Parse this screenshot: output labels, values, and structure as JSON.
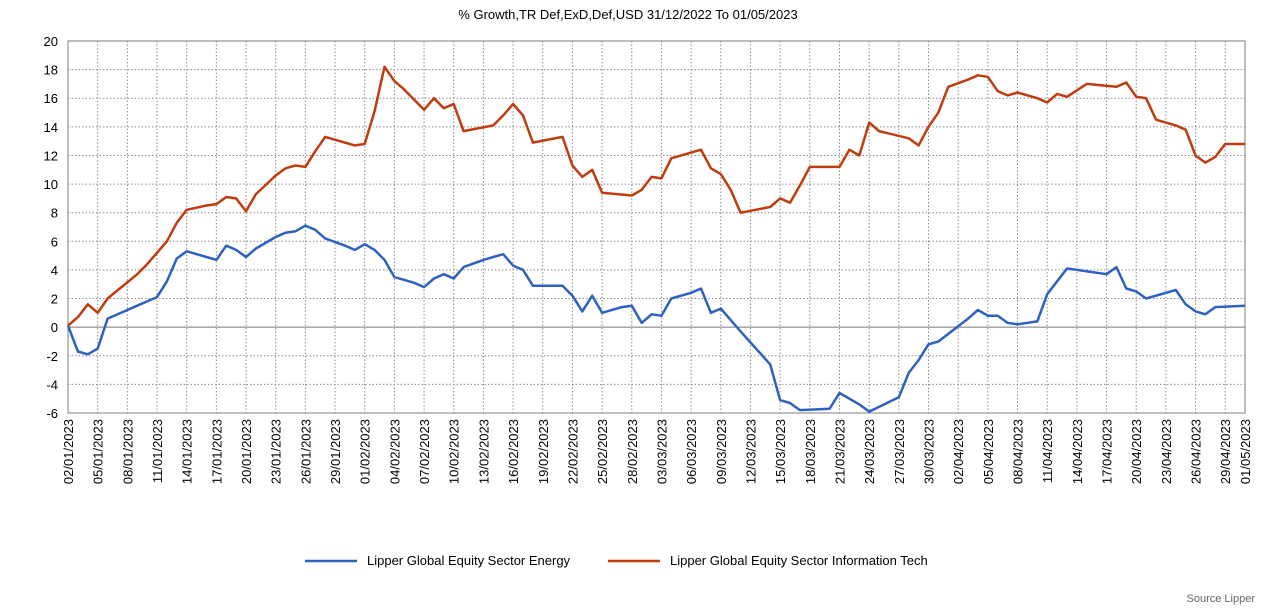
{
  "chart_data": {
    "type": "line",
    "title": "% Growth,TR Def,ExD,Def,USD 31/12/2022 To 01/05/2023",
    "source": "Source Lipper",
    "ylim": [
      -6,
      20
    ],
    "yticks": [
      -6,
      -4,
      -2,
      0,
      2,
      4,
      6,
      8,
      10,
      12,
      14,
      16,
      18,
      20
    ],
    "xlim": [
      "2023-01-02",
      "2023-05-01"
    ],
    "xtick_labels": [
      "02/01/2023",
      "05/01/2023",
      "08/01/2023",
      "11/01/2023",
      "14/01/2023",
      "17/01/2023",
      "20/01/2023",
      "23/01/2023",
      "26/01/2023",
      "29/01/2023",
      "01/02/2023",
      "04/02/2023",
      "07/02/2023",
      "10/02/2023",
      "13/02/2023",
      "16/02/2023",
      "19/02/2023",
      "22/02/2023",
      "25/02/2023",
      "28/02/2023",
      "03/03/2023",
      "06/03/2023",
      "09/03/2023",
      "12/03/2023",
      "15/03/2023",
      "18/03/2023",
      "21/03/2023",
      "24/03/2023",
      "27/03/2023",
      "30/03/2023",
      "02/04/2023",
      "05/04/2023",
      "08/04/2023",
      "11/04/2023",
      "14/04/2023",
      "17/04/2023",
      "20/04/2023",
      "23/04/2023",
      "26/04/2023",
      "29/04/2023",
      "01/05/2023"
    ],
    "grid": true,
    "legend_position": "bottom",
    "series": [
      {
        "name": "Lipper Global Equity Sector Energy",
        "color": "#2e62c0",
        "points": [
          [
            "2023-01-02",
            0.1
          ],
          [
            "2023-01-03",
            -1.7
          ],
          [
            "2023-01-04",
            -1.9
          ],
          [
            "2023-01-05",
            -1.5
          ],
          [
            "2023-01-06",
            0.6
          ],
          [
            "2023-01-09",
            1.5
          ],
          [
            "2023-01-10",
            1.8
          ],
          [
            "2023-01-11",
            2.1
          ],
          [
            "2023-01-12",
            3.2
          ],
          [
            "2023-01-13",
            4.8
          ],
          [
            "2023-01-14",
            5.3
          ],
          [
            "2023-01-16",
            4.9
          ],
          [
            "2023-01-17",
            4.7
          ],
          [
            "2023-01-18",
            5.7
          ],
          [
            "2023-01-19",
            5.4
          ],
          [
            "2023-01-20",
            4.9
          ],
          [
            "2023-01-21",
            5.5
          ],
          [
            "2023-01-23",
            6.3
          ],
          [
            "2023-01-24",
            6.6
          ],
          [
            "2023-01-25",
            6.7
          ],
          [
            "2023-01-26",
            7.1
          ],
          [
            "2023-01-27",
            6.8
          ],
          [
            "2023-01-28",
            6.2
          ],
          [
            "2023-01-30",
            5.7
          ],
          [
            "2023-01-31",
            5.4
          ],
          [
            "2023-02-01",
            5.8
          ],
          [
            "2023-02-02",
            5.4
          ],
          [
            "2023-02-03",
            4.7
          ],
          [
            "2023-02-04",
            3.5
          ],
          [
            "2023-02-06",
            3.1
          ],
          [
            "2023-02-07",
            2.8
          ],
          [
            "2023-02-08",
            3.4
          ],
          [
            "2023-02-09",
            3.7
          ],
          [
            "2023-02-10",
            3.4
          ],
          [
            "2023-02-11",
            4.2
          ],
          [
            "2023-02-13",
            4.7
          ],
          [
            "2023-02-14",
            4.9
          ],
          [
            "2023-02-15",
            5.1
          ],
          [
            "2023-02-16",
            4.3
          ],
          [
            "2023-02-17",
            4.0
          ],
          [
            "2023-02-18",
            2.9
          ],
          [
            "2023-02-20",
            2.9
          ],
          [
            "2023-02-21",
            2.9
          ],
          [
            "2023-02-22",
            2.2
          ],
          [
            "2023-02-23",
            1.1
          ],
          [
            "2023-02-24",
            2.2
          ],
          [
            "2023-02-25",
            1.0
          ],
          [
            "2023-02-27",
            1.4
          ],
          [
            "2023-02-28",
            1.5
          ],
          [
            "2023-03-01",
            0.3
          ],
          [
            "2023-03-02",
            0.9
          ],
          [
            "2023-03-03",
            0.8
          ],
          [
            "2023-03-04",
            2.0
          ],
          [
            "2023-03-06",
            2.4
          ],
          [
            "2023-03-07",
            2.7
          ],
          [
            "2023-03-08",
            1.0
          ],
          [
            "2023-03-09",
            1.3
          ],
          [
            "2023-03-11",
            -0.3
          ],
          [
            "2023-03-14",
            -2.6
          ],
          [
            "2023-03-15",
            -5.1
          ],
          [
            "2023-03-16",
            -5.3
          ],
          [
            "2023-03-17",
            -5.8
          ],
          [
            "2023-03-20",
            -5.7
          ],
          [
            "2023-03-21",
            -4.6
          ],
          [
            "2023-03-22",
            -5.0
          ],
          [
            "2023-03-23",
            -5.4
          ],
          [
            "2023-03-24",
            -5.9
          ],
          [
            "2023-03-27",
            -4.9
          ],
          [
            "2023-03-28",
            -3.2
          ],
          [
            "2023-03-29",
            -2.3
          ],
          [
            "2023-03-30",
            -1.2
          ],
          [
            "2023-03-31",
            -1.0
          ],
          [
            "2023-04-03",
            0.6
          ],
          [
            "2023-04-04",
            1.2
          ],
          [
            "2023-04-05",
            0.8
          ],
          [
            "2023-04-06",
            0.8
          ],
          [
            "2023-04-07",
            0.3
          ],
          [
            "2023-04-08",
            0.2
          ],
          [
            "2023-04-10",
            0.4
          ],
          [
            "2023-04-11",
            2.3
          ],
          [
            "2023-04-13",
            4.1
          ],
          [
            "2023-04-14",
            4.0
          ],
          [
            "2023-04-17",
            3.7
          ],
          [
            "2023-04-18",
            4.2
          ],
          [
            "2023-04-19",
            2.7
          ],
          [
            "2023-04-20",
            2.5
          ],
          [
            "2023-04-21",
            2.0
          ],
          [
            "2023-04-24",
            2.6
          ],
          [
            "2023-04-25",
            1.6
          ],
          [
            "2023-04-26",
            1.1
          ],
          [
            "2023-04-27",
            0.9
          ],
          [
            "2023-04-28",
            1.4
          ],
          [
            "2023-05-01",
            1.5
          ]
        ]
      },
      {
        "name": "Lipper Global Equity Sector Information Tech",
        "color": "#c03c0e",
        "points": [
          [
            "2023-01-02",
            0.1
          ],
          [
            "2023-01-03",
            0.7
          ],
          [
            "2023-01-04",
            1.6
          ],
          [
            "2023-01-05",
            1.0
          ],
          [
            "2023-01-06",
            2.0
          ],
          [
            "2023-01-09",
            3.7
          ],
          [
            "2023-01-10",
            4.4
          ],
          [
            "2023-01-11",
            5.2
          ],
          [
            "2023-01-12",
            6.0
          ],
          [
            "2023-01-13",
            7.3
          ],
          [
            "2023-01-14",
            8.2
          ],
          [
            "2023-01-16",
            8.5
          ],
          [
            "2023-01-17",
            8.6
          ],
          [
            "2023-01-18",
            9.1
          ],
          [
            "2023-01-19",
            9.0
          ],
          [
            "2023-01-20",
            8.1
          ],
          [
            "2023-01-21",
            9.3
          ],
          [
            "2023-01-23",
            10.6
          ],
          [
            "2023-01-24",
            11.1
          ],
          [
            "2023-01-25",
            11.3
          ],
          [
            "2023-01-26",
            11.2
          ],
          [
            "2023-01-27",
            12.3
          ],
          [
            "2023-01-28",
            13.3
          ],
          [
            "2023-01-30",
            12.9
          ],
          [
            "2023-01-31",
            12.7
          ],
          [
            "2023-02-01",
            12.8
          ],
          [
            "2023-02-02",
            15.1
          ],
          [
            "2023-02-03",
            18.2
          ],
          [
            "2023-02-04",
            17.2
          ],
          [
            "2023-02-05",
            16.6
          ],
          [
            "2023-02-06",
            15.9
          ],
          [
            "2023-02-07",
            15.2
          ],
          [
            "2023-02-08",
            16.0
          ],
          [
            "2023-02-09",
            15.3
          ],
          [
            "2023-02-10",
            15.6
          ],
          [
            "2023-02-11",
            13.7
          ],
          [
            "2023-02-14",
            14.1
          ],
          [
            "2023-02-15",
            14.8
          ],
          [
            "2023-02-16",
            15.6
          ],
          [
            "2023-02-17",
            14.8
          ],
          [
            "2023-02-18",
            12.9
          ],
          [
            "2023-02-21",
            13.3
          ],
          [
            "2023-02-22",
            11.3
          ],
          [
            "2023-02-23",
            10.5
          ],
          [
            "2023-02-24",
            11.0
          ],
          [
            "2023-02-25",
            9.4
          ],
          [
            "2023-02-28",
            9.2
          ],
          [
            "2023-03-01",
            9.6
          ],
          [
            "2023-03-02",
            10.5
          ],
          [
            "2023-03-03",
            10.4
          ],
          [
            "2023-03-04",
            11.8
          ],
          [
            "2023-03-07",
            12.4
          ],
          [
            "2023-03-08",
            11.1
          ],
          [
            "2023-03-09",
            10.7
          ],
          [
            "2023-03-10",
            9.6
          ],
          [
            "2023-03-11",
            8.0
          ],
          [
            "2023-03-14",
            8.4
          ],
          [
            "2023-03-15",
            9.0
          ],
          [
            "2023-03-16",
            8.7
          ],
          [
            "2023-03-17",
            9.9
          ],
          [
            "2023-03-18",
            11.2
          ],
          [
            "2023-03-21",
            11.2
          ],
          [
            "2023-03-22",
            12.4
          ],
          [
            "2023-03-23",
            12.0
          ],
          [
            "2023-03-24",
            14.3
          ],
          [
            "2023-03-25",
            13.7
          ],
          [
            "2023-03-28",
            13.2
          ],
          [
            "2023-03-29",
            12.7
          ],
          [
            "2023-03-30",
            14.0
          ],
          [
            "2023-03-31",
            15.0
          ],
          [
            "2023-04-01",
            16.8
          ],
          [
            "2023-04-03",
            17.3
          ],
          [
            "2023-04-04",
            17.6
          ],
          [
            "2023-04-05",
            17.5
          ],
          [
            "2023-04-06",
            16.5
          ],
          [
            "2023-04-07",
            16.2
          ],
          [
            "2023-04-08",
            16.4
          ],
          [
            "2023-04-10",
            16.0
          ],
          [
            "2023-04-11",
            15.7
          ],
          [
            "2023-04-12",
            16.3
          ],
          [
            "2023-04-13",
            16.1
          ],
          [
            "2023-04-15",
            17.0
          ],
          [
            "2023-04-18",
            16.8
          ],
          [
            "2023-04-19",
            17.1
          ],
          [
            "2023-04-20",
            16.1
          ],
          [
            "2023-04-21",
            16.0
          ],
          [
            "2023-04-22",
            14.5
          ],
          [
            "2023-04-24",
            14.1
          ],
          [
            "2023-04-25",
            13.8
          ],
          [
            "2023-04-26",
            12.0
          ],
          [
            "2023-04-27",
            11.5
          ],
          [
            "2023-04-28",
            11.9
          ],
          [
            "2023-04-29",
            12.8
          ],
          [
            "2023-04-30",
            12.8
          ],
          [
            "2023-05-01",
            12.8
          ]
        ]
      }
    ]
  }
}
